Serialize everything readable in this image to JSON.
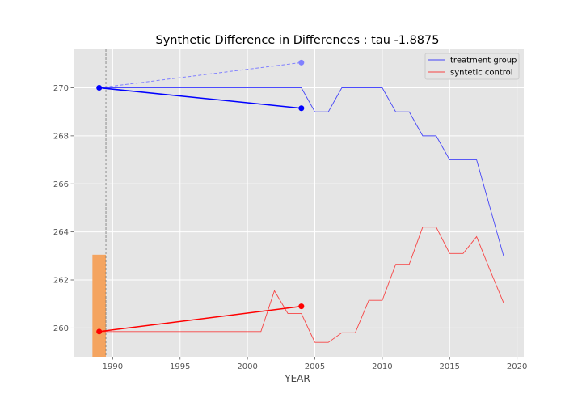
{
  "chart_data": {
    "type": "line",
    "title": "Synthetic Difference in Differences : tau -1.8875",
    "xlabel": "YEAR",
    "ylabel": "",
    "xlim": [
      1987.1,
      2020.5
    ],
    "ylim": [
      258.8,
      271.6
    ],
    "xticks": [
      1990,
      1995,
      2000,
      2005,
      2010,
      2015,
      2020
    ],
    "yticks": [
      260,
      262,
      264,
      266,
      268,
      270
    ],
    "grid": true,
    "legend_position": "top-right",
    "background": "#e5e5e5",
    "treatment_year": 1989.5,
    "series": [
      {
        "name": "treatment group",
        "color": "#0000ff",
        "x": [
          1989,
          1990,
          1991,
          1992,
          1993,
          1994,
          1995,
          1996,
          1997,
          1998,
          1999,
          2000,
          2001,
          2002,
          2003,
          2004,
          2005,
          2006,
          2007,
          2008,
          2009,
          2010,
          2011,
          2012,
          2013,
          2014,
          2015,
          2016,
          2017,
          2018,
          2019
        ],
        "y": [
          270,
          270,
          270,
          270,
          270,
          270,
          270,
          270,
          270,
          270,
          270,
          270,
          270,
          270,
          270,
          270,
          269,
          269,
          270,
          270,
          270,
          270,
          269,
          269,
          268,
          268,
          267,
          267,
          267,
          265,
          263
        ]
      },
      {
        "name": "syntetic control",
        "color": "#ff0000",
        "x": [
          1989,
          1990,
          1991,
          1992,
          1993,
          1994,
          1995,
          1996,
          1997,
          1998,
          1999,
          2000,
          2001,
          2002,
          2003,
          2004,
          2005,
          2006,
          2007,
          2008,
          2009,
          2010,
          2011,
          2012,
          2013,
          2014,
          2015,
          2016,
          2017,
          2018,
          2019
        ],
        "y": [
          259.85,
          259.85,
          259.85,
          259.85,
          259.85,
          259.85,
          259.85,
          259.85,
          259.85,
          259.85,
          259.85,
          259.85,
          259.85,
          261.55,
          260.6,
          260.6,
          259.4,
          259.4,
          259.8,
          259.8,
          261.15,
          261.15,
          262.65,
          262.65,
          264.2,
          264.2,
          263.1,
          263.1,
          263.8,
          262.4,
          261.05
        ]
      }
    ],
    "pre_post_segments": [
      {
        "color": "#0000ff",
        "x": [
          1989,
          2004
        ],
        "y": [
          270.0,
          269.15
        ]
      },
      {
        "color": "#ff0000",
        "x": [
          1989,
          2004
        ],
        "y": [
          259.85,
          260.9
        ]
      }
    ],
    "counterfactual_segment": {
      "color": "#8080ff",
      "x": [
        1989,
        2004
      ],
      "y": [
        270.0,
        271.05
      ]
    },
    "weight_bar": {
      "color": "#f4a460",
      "x0": 1988.5,
      "x1": 1989.5,
      "top": 263.05
    }
  }
}
